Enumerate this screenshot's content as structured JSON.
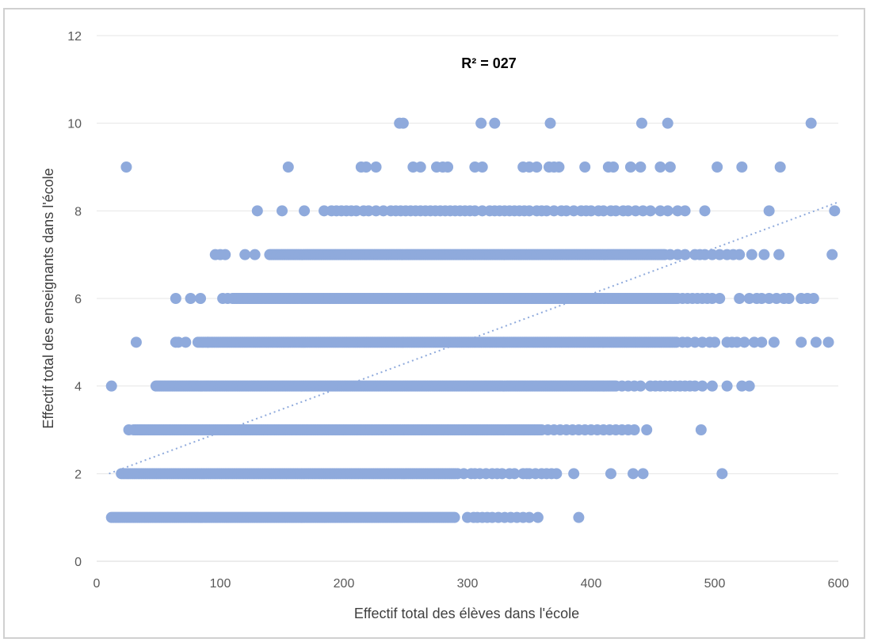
{
  "chart_data": {
    "type": "scatter",
    "title": "",
    "xlabel": "Effectif total des élèves dans l'école",
    "ylabel": "Effectif total des enseignants dans l'école",
    "annotation": "R² = 027",
    "xlim": [
      0,
      600
    ],
    "ylim": [
      0,
      12
    ],
    "xticks": [
      "0",
      "100",
      "200",
      "300",
      "400",
      "500",
      "600"
    ],
    "yticks": [
      "0",
      "2",
      "4",
      "6",
      "8",
      "10",
      "12"
    ],
    "grid": "horizontal",
    "legend": "none",
    "point_color": "#8faadc",
    "trend_color": "#8faadc",
    "trendline": {
      "type": "linear",
      "x": [
        10,
        600
      ],
      "y": [
        2.0,
        8.2
      ]
    },
    "rows": [
      {
        "y": 1,
        "segments": [
          [
            12,
            290
          ]
        ],
        "points": [
          300,
          305,
          308,
          312,
          316,
          320,
          325,
          330,
          335,
          340,
          345,
          350,
          357,
          390
        ]
      },
      {
        "y": 2,
        "segments": [
          [
            20,
            290
          ]
        ],
        "points": [
          292,
          297,
          303,
          306,
          310,
          315,
          320,
          324,
          328,
          334,
          338,
          345,
          348,
          350,
          355,
          360,
          364,
          368,
          372,
          386,
          416,
          434,
          442,
          506
        ]
      },
      {
        "y": 3,
        "segments": [
          [
            30,
            360
          ]
        ],
        "points": [
          26,
          36,
          365,
          370,
          375,
          380,
          385,
          390,
          395,
          400,
          405,
          410,
          415,
          420,
          425,
          430,
          435,
          445,
          489
        ]
      },
      {
        "y": 4,
        "segments": [
          [
            48,
            420
          ]
        ],
        "points": [
          12,
          425,
          430,
          435,
          440,
          448,
          452,
          456,
          460,
          464,
          468,
          472,
          476,
          480,
          484,
          490,
          498,
          510,
          522,
          528
        ]
      },
      {
        "y": 5,
        "segments": [
          [
            82,
            470
          ]
        ],
        "points": [
          32,
          64,
          66,
          72,
          90,
          474,
          478,
          484,
          490,
          496,
          500,
          510,
          514,
          518,
          524,
          532,
          538,
          548,
          570,
          582,
          592
        ]
      },
      {
        "y": 6,
        "segments": [
          [
            110,
            470
          ]
        ],
        "points": [
          64,
          76,
          84,
          102,
          106,
          474,
          478,
          482,
          486,
          490,
          494,
          498,
          504,
          520,
          528,
          534,
          538,
          544,
          550,
          556,
          560,
          570,
          575,
          580
        ]
      },
      {
        "y": 7,
        "segments": [
          [
            140,
            460
          ]
        ],
        "points": [
          96,
          100,
          104,
          120,
          128,
          464,
          470,
          476,
          484,
          488,
          492,
          498,
          504,
          510,
          515,
          520,
          530,
          540,
          552,
          595
        ]
      },
      {
        "y": 8,
        "points": [
          130,
          150,
          168,
          184,
          190,
          194,
          198,
          202,
          206,
          210,
          216,
          220,
          226,
          232,
          238,
          242,
          246,
          250,
          254,
          258,
          262,
          266,
          270,
          274,
          278,
          282,
          286,
          290,
          294,
          298,
          302,
          306,
          312,
          318,
          322,
          326,
          330,
          334,
          338,
          342,
          346,
          350,
          356,
          360,
          364,
          370,
          376,
          380,
          386,
          392,
          396,
          400,
          406,
          410,
          416,
          420,
          426,
          430,
          436,
          442,
          448,
          456,
          462,
          470,
          476,
          492,
          544,
          597
        ]
      },
      {
        "y": 9,
        "points": [
          24,
          155,
          214,
          218,
          226,
          256,
          262,
          275,
          280,
          284,
          306,
          312,
          345,
          350,
          356,
          366,
          370,
          374,
          395,
          414,
          418,
          432,
          440,
          456,
          464,
          502,
          522,
          553
        ]
      },
      {
        "y": 10,
        "points": [
          245,
          248,
          311,
          322,
          367,
          441,
          462,
          578
        ]
      }
    ]
  }
}
